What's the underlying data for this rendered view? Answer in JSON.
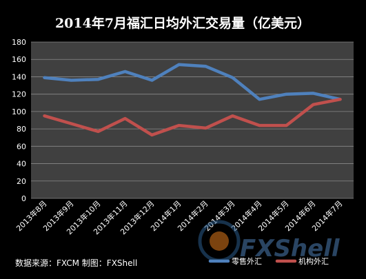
{
  "chart_data": {
    "type": "line",
    "title": "2014年7月福汇日均外汇交易量（亿美元）",
    "categories": [
      "2013年8月",
      "2013年9月",
      "2013年10月",
      "2013年11月",
      "2013年12月",
      "2014年1月",
      "2014年2月",
      "2014年3月",
      "2014年4月",
      "2014年5月",
      "2014年6月",
      "2014年7月"
    ],
    "series": [
      {
        "name": "零售外汇",
        "color": "#4f81bd",
        "values": [
          139,
          136,
          137,
          146,
          136,
          154,
          152,
          139,
          114,
          120,
          121,
          114
        ]
      },
      {
        "name": "机构外汇",
        "color": "#c0504d",
        "values": [
          95,
          86,
          77,
          92,
          73,
          84,
          81,
          95,
          84,
          84,
          108,
          114
        ]
      }
    ],
    "ylim": [
      0,
      180
    ],
    "yticks": [
      0,
      20,
      40,
      60,
      80,
      100,
      120,
      140,
      160,
      180
    ],
    "grid": true,
    "legend_position": "bottom-right",
    "plot_background": "#404040",
    "page_background": "#000000"
  },
  "footer": {
    "source_text": "数据来源：FXCM   制图：FXShell"
  },
  "watermark": {
    "text": "FXShell"
  }
}
